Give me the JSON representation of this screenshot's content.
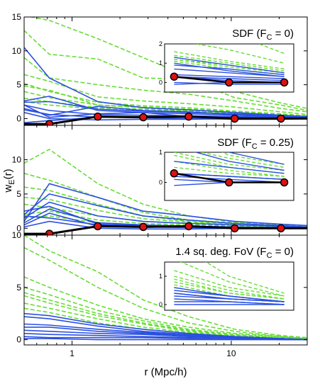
{
  "chart_data": {
    "type": "line",
    "xlabel": "r  (Mpc/h)",
    "ylabel": "w",
    "ylabel_sub": "E",
    "ylabel_suffix": "(r)",
    "x_scale": "log",
    "xlim": [
      0.5,
      30
    ],
    "xticks": [
      1,
      10
    ],
    "x": [
      0.5,
      0.72,
      1.45,
      2.8,
      5.4,
      10.5,
      20.5,
      30
    ],
    "colors": {
      "real": "#2b50e0",
      "random": "#66dd33",
      "measured": "#000000",
      "marker": "#dd1111"
    },
    "panels": [
      {
        "title_main": "SDF (F",
        "title_sub": "C",
        "title_tail": " = 0)",
        "ylim": [
          -1,
          15
        ],
        "yticks": [
          0,
          5,
          10,
          15
        ],
        "real_curves": [
          [
            10.5,
            6.0,
            2.5,
            1.6,
            1.3,
            0.9,
            0.5,
            0.3
          ],
          [
            2.6,
            3.3,
            1.2,
            0.9,
            0.7,
            0.5,
            0.3,
            0.2
          ],
          [
            2.0,
            1.2,
            0.6,
            0.5,
            0.4,
            0.3,
            0.2,
            0.1
          ],
          [
            1.3,
            0.6,
            0.2,
            0.1,
            0.0,
            -0.1,
            -0.1,
            0.0
          ],
          [
            -0.6,
            -0.3,
            0.2,
            0.3,
            0.3,
            0.2,
            0.1,
            0.1
          ],
          [
            1.5,
            0.5,
            1.8,
            1.2,
            1.0,
            0.6,
            0.3,
            0.2
          ],
          [
            0.9,
            0.0,
            -0.2,
            -0.1,
            -0.1,
            0.0,
            0.0,
            0.0
          ],
          [
            2.0,
            0.2,
            0.7,
            0.9,
            0.3,
            0.1,
            0.0,
            0.0
          ],
          [
            2.4,
            2.5,
            1.4,
            1.1,
            0.9,
            0.7,
            0.4,
            0.2
          ]
        ],
        "random_curves": [
          [
            15.2,
            14.5,
            11.8,
            9.0,
            6.2,
            4.0,
            2.3,
            1.5
          ],
          [
            13.0,
            9.5,
            8.8,
            6.0,
            5.8,
            3.1,
            2.0,
            1.2
          ],
          [
            9.0,
            6.0,
            5.0,
            4.2,
            3.6,
            2.6,
            1.5,
            1.0
          ],
          [
            6.5,
            5.5,
            3.2,
            2.6,
            2.2,
            1.7,
            1.0,
            0.6
          ],
          [
            5.2,
            4.0,
            2.4,
            1.9,
            1.6,
            1.1,
            0.7,
            0.4
          ],
          [
            4.0,
            3.1,
            2.0,
            1.6,
            1.2,
            0.9,
            0.5,
            0.3
          ],
          [
            3.0,
            2.5,
            1.6,
            1.4,
            1.2,
            0.8,
            0.5,
            0.3
          ],
          [
            2.5,
            2.0,
            1.4,
            1.2,
            1.1,
            0.7,
            0.4,
            0.2
          ],
          [
            4.8,
            4.2,
            2.0,
            1.7,
            1.4,
            1.0,
            0.6,
            0.4
          ]
        ],
        "measured": [
          -0.8,
          -0.8,
          0.3,
          0.2,
          0.3,
          0.0,
          0.0,
          0.0
        ],
        "inset": {
          "ylim": [
            -0.5,
            2
          ],
          "yticks": [
            0,
            1,
            2
          ],
          "x": [
            5.4,
            10.5,
            20.5
          ]
        }
      },
      {
        "title_main": "SDF (F",
        "title_sub": "C",
        "title_tail": " = 0.25)",
        "ylim": [
          -1,
          15
        ],
        "yticks": [
          0,
          5,
          10
        ],
        "real_curves": [
          [
            1.0,
            6.5,
            4.5,
            2.5,
            1.8,
            1.0,
            0.6,
            0.4
          ],
          [
            2.0,
            5.0,
            3.3,
            1.8,
            1.2,
            0.7,
            0.4,
            0.2
          ],
          [
            1.5,
            3.8,
            1.8,
            1.0,
            0.7,
            0.5,
            0.3,
            0.2
          ],
          [
            0.8,
            2.8,
            0.8,
            0.5,
            0.3,
            0.2,
            0.1,
            0.1
          ],
          [
            0.5,
            2.2,
            0.3,
            0.2,
            0.1,
            0.0,
            0.0,
            0.0
          ],
          [
            1.8,
            1.5,
            0.5,
            0.3,
            0.2,
            0.1,
            0.0,
            0.0
          ],
          [
            0.2,
            1.0,
            0.0,
            -0.1,
            -0.1,
            0.0,
            0.0,
            0.0
          ],
          [
            2.5,
            3.2,
            0.6,
            0.4,
            0.3,
            0.2,
            0.1,
            0.1
          ]
        ],
        "random_curves": [
          [
            9.5,
            11.5,
            6.5,
            3.5,
            1.8,
            0.9,
            0.6,
            0.4
          ],
          [
            8.0,
            7.0,
            4.5,
            2.3,
            1.2,
            0.8,
            0.5,
            0.3
          ],
          [
            6.0,
            5.5,
            3.5,
            1.8,
            1.0,
            0.6,
            0.4,
            0.2
          ],
          [
            4.5,
            4.2,
            2.6,
            1.4,
            0.9,
            0.5,
            0.3,
            0.2
          ],
          [
            3.5,
            3.0,
            1.8,
            1.0,
            0.7,
            0.4,
            0.2,
            0.1
          ],
          [
            2.0,
            2.5,
            1.2,
            0.7,
            0.5,
            0.3,
            0.2,
            0.1
          ],
          [
            1.5,
            1.8,
            0.8,
            0.5,
            0.3,
            0.2,
            0.1,
            0.1
          ]
        ],
        "measured": [
          -0.8,
          -0.8,
          0.3,
          0.2,
          0.3,
          0.0,
          0.0,
          0.0
        ],
        "inset": {
          "ylim": [
            -0.6,
            1
          ],
          "yticks": [
            0,
            1
          ],
          "x": [
            5.4,
            10.5,
            20.5
          ]
        }
      },
      {
        "title_main": "1.4 sq. deg. FoV (F",
        "title_sub": "C",
        "title_tail": " = 0)",
        "ylim": [
          -0.5,
          10
        ],
        "yticks": [
          0,
          5,
          10
        ],
        "real_curves": [
          [
            2.5,
            2.3,
            1.5,
            1.0,
            0.6,
            0.3,
            0.1,
            0.0
          ],
          [
            2.2,
            2.0,
            1.3,
            0.8,
            0.5,
            0.3,
            0.1,
            0.0
          ],
          [
            1.5,
            1.4,
            1.0,
            0.7,
            0.4,
            0.2,
            0.1,
            0.0
          ],
          [
            1.2,
            1.2,
            0.8,
            0.6,
            0.4,
            0.2,
            0.1,
            0.0
          ],
          [
            0.9,
            0.8,
            0.6,
            0.5,
            0.3,
            0.2,
            0.1,
            0.0
          ],
          [
            0.6,
            0.5,
            0.4,
            0.3,
            0.2,
            0.1,
            0.0,
            0.0
          ],
          [
            0.3,
            0.2,
            0.2,
            0.2,
            0.1,
            0.1,
            0.0,
            0.0
          ],
          [
            0.1,
            0.1,
            0.0,
            0.0,
            0.0,
            0.0,
            0.0,
            0.0
          ]
        ],
        "random_curves": [
          [
            10.0,
            8.5,
            6.5,
            3.8,
            2.2,
            1.0,
            0.4,
            0.2
          ],
          [
            8.8,
            7.6,
            5.0,
            3.0,
            1.6,
            0.8,
            0.3,
            0.1
          ],
          [
            6.0,
            5.0,
            3.3,
            2.0,
            1.2,
            0.6,
            0.3,
            0.1
          ],
          [
            5.0,
            4.3,
            2.8,
            1.8,
            1.0,
            0.5,
            0.2,
            0.1
          ],
          [
            4.5,
            3.8,
            2.5,
            1.6,
            0.9,
            0.4,
            0.2,
            0.1
          ],
          [
            4.2,
            3.5,
            2.3,
            1.5,
            0.8,
            0.4,
            0.2,
            0.1
          ],
          [
            3.5,
            3.0,
            2.0,
            1.2,
            0.7,
            0.3,
            0.1,
            0.0
          ],
          [
            3.0,
            2.6,
            1.6,
            1.0,
            0.6,
            0.3,
            0.1,
            0.0
          ]
        ],
        "measured": null,
        "inset": {
          "ylim": [
            -0.2,
            1.5
          ],
          "yticks": [
            0,
            1
          ],
          "x": [
            5.4,
            10.5,
            20.5
          ]
        }
      }
    ]
  }
}
